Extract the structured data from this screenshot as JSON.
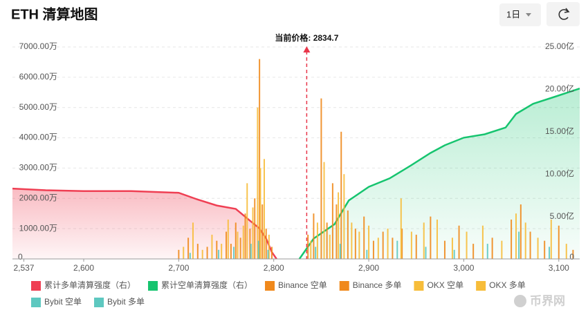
{
  "title": "ETH 清算地图",
  "controls": {
    "interval": "1日"
  },
  "watermark": "币界网",
  "chart_data": {
    "type": "combo",
    "xlim": [
      2525,
      3122
    ],
    "xticks": [
      {
        "value": 2537,
        "label": "2,537"
      },
      {
        "value": 2600,
        "label": "2,600"
      },
      {
        "value": 2700,
        "label": "2,700"
      },
      {
        "value": 2800,
        "label": "2,800"
      },
      {
        "value": 2900,
        "label": "2,900"
      },
      {
        "value": 3000,
        "label": "3,000"
      },
      {
        "value": 3100,
        "label": "3,100"
      }
    ],
    "ylim": [
      0,
      7000
    ],
    "yticks": [
      0,
      {
        "value": 1000,
        "label": "1000.00万"
      },
      {
        "value": 2000,
        "label": "2000.00万"
      },
      {
        "value": 3000,
        "label": "3000.00万"
      },
      {
        "value": 4000,
        "label": "4000.00万"
      },
      {
        "value": 5000,
        "label": "5000.00万"
      },
      {
        "value": 6000,
        "label": "6000.00万"
      },
      {
        "value": 7000,
        "label": "7000.00万"
      }
    ],
    "y2lim": [
      0,
      25
    ],
    "y2ticks": [
      0,
      {
        "value": 5,
        "label": "5.00亿"
      },
      {
        "value": 10,
        "label": "10.00亿"
      },
      {
        "value": 15,
        "label": "15.00亿"
      },
      {
        "value": 20,
        "label": "20.00亿"
      },
      {
        "value": 25,
        "label": "25.00亿"
      }
    ],
    "grid": true,
    "current_price": {
      "value": 2834.7,
      "label": "当前价格: 2834.7"
    },
    "series": [
      {
        "name": "累计多单清算强度（右）",
        "type": "line",
        "axis": "y2",
        "color": "#ef3f53",
        "x": [
          2525,
          2560,
          2600,
          2650,
          2700,
          2720,
          2740,
          2760,
          2775,
          2785,
          2792,
          2798,
          2803
        ],
        "values": [
          8.3,
          8.1,
          8.0,
          8.0,
          7.8,
          7.0,
          6.3,
          5.9,
          4.5,
          3.6,
          2.4,
          0.8,
          0
        ]
      },
      {
        "name": "累计空单清算强度（右）",
        "type": "line",
        "axis": "y2",
        "color": "#16c46f",
        "x": [
          2827,
          2842,
          2864,
          2879,
          2900,
          2922,
          2944,
          2965,
          2980,
          3000,
          3022,
          3044,
          3055,
          3073,
          3095,
          3122
        ],
        "values": [
          0,
          2.4,
          4.1,
          6.9,
          8.5,
          9.5,
          11.0,
          12.5,
          13.4,
          14.3,
          14.7,
          15.5,
          17.1,
          18.3,
          19.1,
          20.1
        ]
      },
      {
        "name": "Binance 空单",
        "type": "bar",
        "color": "#f0891c",
        "x": [
          2836,
          2842,
          2850,
          2856,
          2862,
          2866,
          2871,
          2878,
          2886,
          2895,
          2905,
          2915,
          2925,
          2935,
          2950,
          2965,
          2980,
          2995,
          3010,
          3030,
          3050,
          3060,
          3070,
          3085,
          3100,
          3115
        ],
        "values": [
          800,
          1500,
          5300,
          1200,
          2500,
          1800,
          4200,
          1600,
          1000,
          1400,
          600,
          900,
          700,
          1000,
          800,
          1400,
          600,
          1100,
          500,
          700,
          1300,
          1800,
          900,
          600,
          1100,
          300
        ]
      },
      {
        "name": "Binance 多单",
        "type": "bar",
        "color": "#f0891c",
        "x": [
          2700,
          2710,
          2720,
          2730,
          2740,
          2750,
          2755,
          2760,
          2765,
          2770,
          2775,
          2780,
          2785,
          2788,
          2792,
          2798
        ],
        "values": [
          300,
          700,
          500,
          400,
          600,
          900,
          500,
          1200,
          700,
          1500,
          1000,
          2000,
          6600,
          1800,
          1000,
          400
        ]
      },
      {
        "name": "OKX 空单",
        "type": "bar",
        "color": "#f7bd3a",
        "x": [
          2839,
          2846,
          2853,
          2859,
          2868,
          2874,
          2882,
          2890,
          2900,
          2910,
          2920,
          2934,
          2945,
          2958,
          2972,
          2988,
          3003,
          3020,
          3040,
          3055,
          3065,
          3078,
          3092,
          3108
        ],
        "values": [
          600,
          1200,
          3200,
          800,
          2200,
          2800,
          1200,
          900,
          1100,
          700,
          1000,
          2000,
          900,
          1200,
          1300,
          700,
          900,
          1100,
          600,
          1500,
          1200,
          700,
          1300,
          500
        ]
      },
      {
        "name": "OKX 多单",
        "type": "bar",
        "color": "#f7bd3a",
        "x": [
          2705,
          2715,
          2725,
          2735,
          2745,
          2752,
          2762,
          2768,
          2772,
          2778,
          2783,
          2786,
          2790,
          2795
        ],
        "values": [
          400,
          1200,
          300,
          800,
          500,
          1300,
          900,
          1100,
          2500,
          1700,
          5000,
          3000,
          3300,
          800
        ]
      },
      {
        "name": "Bybit 空单",
        "type": "bar",
        "color": "#5ec8c0",
        "x": [
          2844,
          2870,
          2898,
          2930,
          2960,
          2990,
          3025,
          3058,
          3090
        ],
        "values": [
          400,
          500,
          300,
          600,
          400,
          300,
          500,
          900,
          400
        ]
      },
      {
        "name": "Bybit 多单",
        "type": "bar",
        "color": "#5ec8c0",
        "x": [
          2712,
          2742,
          2758,
          2776,
          2784,
          2794
        ],
        "values": [
          200,
          300,
          400,
          500,
          600,
          300
        ]
      }
    ]
  }
}
